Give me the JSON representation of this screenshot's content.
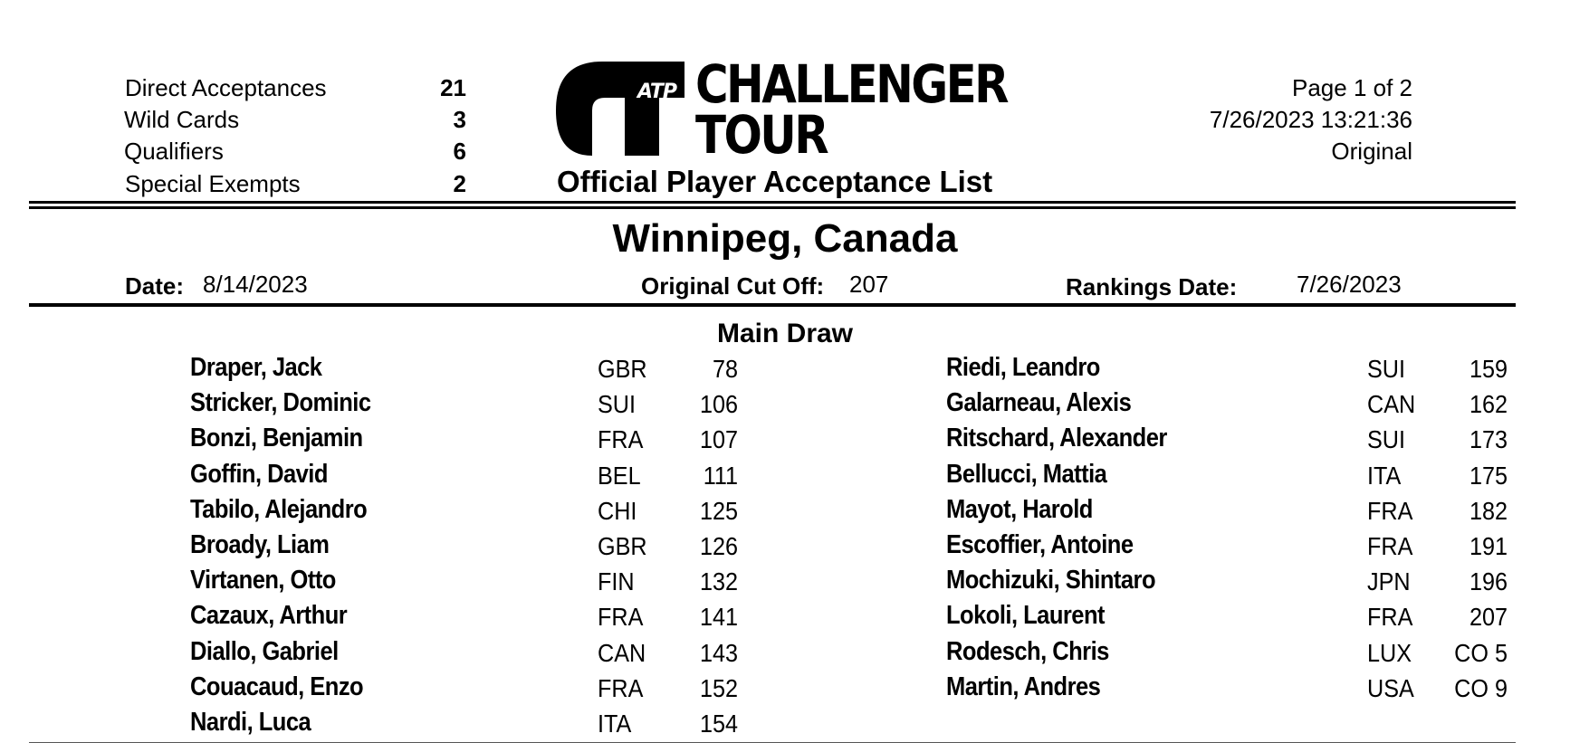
{
  "summary": {
    "direct_acceptances_label": "Direct Acceptances",
    "direct_acceptances_value": "21",
    "wild_cards_label": "Wild Cards",
    "wild_cards_value": "3",
    "qualifiers_label": "Qualifiers",
    "qualifiers_value": "6",
    "special_exempts_label": "Special Exempts",
    "special_exempts_value": "2"
  },
  "logo": {
    "atp": "ATP",
    "line1": "CHALLENGER",
    "line2": "TOUR"
  },
  "document_title": "Official Player Acceptance List",
  "meta": {
    "page": "Page 1 of 2",
    "timestamp": "7/26/2023 13:21:36",
    "version": "Original"
  },
  "tournament": {
    "city": "Winnipeg, Canada",
    "date_label": "Date:",
    "date_value": "8/14/2023",
    "cutoff_label": "Original Cut Off:",
    "cutoff_value": "207",
    "rankings_label": "Rankings Date:",
    "rankings_value": "7/26/2023"
  },
  "section_title": "Main Draw",
  "players_left": [
    {
      "name": "Draper, Jack",
      "country": "GBR",
      "rank": "78"
    },
    {
      "name": "Stricker, Dominic",
      "country": "SUI",
      "rank": "106"
    },
    {
      "name": "Bonzi, Benjamin",
      "country": "FRA",
      "rank": "107"
    },
    {
      "name": "Goffin, David",
      "country": "BEL",
      "rank": "111"
    },
    {
      "name": "Tabilo, Alejandro",
      "country": "CHI",
      "rank": "125"
    },
    {
      "name": "Broady, Liam",
      "country": "GBR",
      "rank": "126"
    },
    {
      "name": "Virtanen, Otto",
      "country": "FIN",
      "rank": "132"
    },
    {
      "name": "Cazaux, Arthur",
      "country": "FRA",
      "rank": "141"
    },
    {
      "name": "Diallo, Gabriel",
      "country": "CAN",
      "rank": "143"
    },
    {
      "name": "Couacaud, Enzo",
      "country": "FRA",
      "rank": "152"
    },
    {
      "name": "Nardi, Luca",
      "country": "ITA",
      "rank": "154"
    }
  ],
  "players_right": [
    {
      "name": "Riedi, Leandro",
      "country": "SUI",
      "rank": "159"
    },
    {
      "name": "Galarneau, Alexis",
      "country": "CAN",
      "rank": "162"
    },
    {
      "name": "Ritschard, Alexander",
      "country": "SUI",
      "rank": "173"
    },
    {
      "name": "Bellucci, Mattia",
      "country": "ITA",
      "rank": "175"
    },
    {
      "name": "Mayot, Harold",
      "country": "FRA",
      "rank": "182"
    },
    {
      "name": "Escoffier, Antoine",
      "country": "FRA",
      "rank": "191"
    },
    {
      "name": "Mochizuki, Shintaro",
      "country": "JPN",
      "rank": "196"
    },
    {
      "name": "Lokoli, Laurent",
      "country": "FRA",
      "rank": "207"
    },
    {
      "name": "Rodesch, Chris",
      "country": "LUX",
      "rank": "CO 5"
    },
    {
      "name": "Martin, Andres",
      "country": "USA",
      "rank": "CO 9"
    }
  ]
}
